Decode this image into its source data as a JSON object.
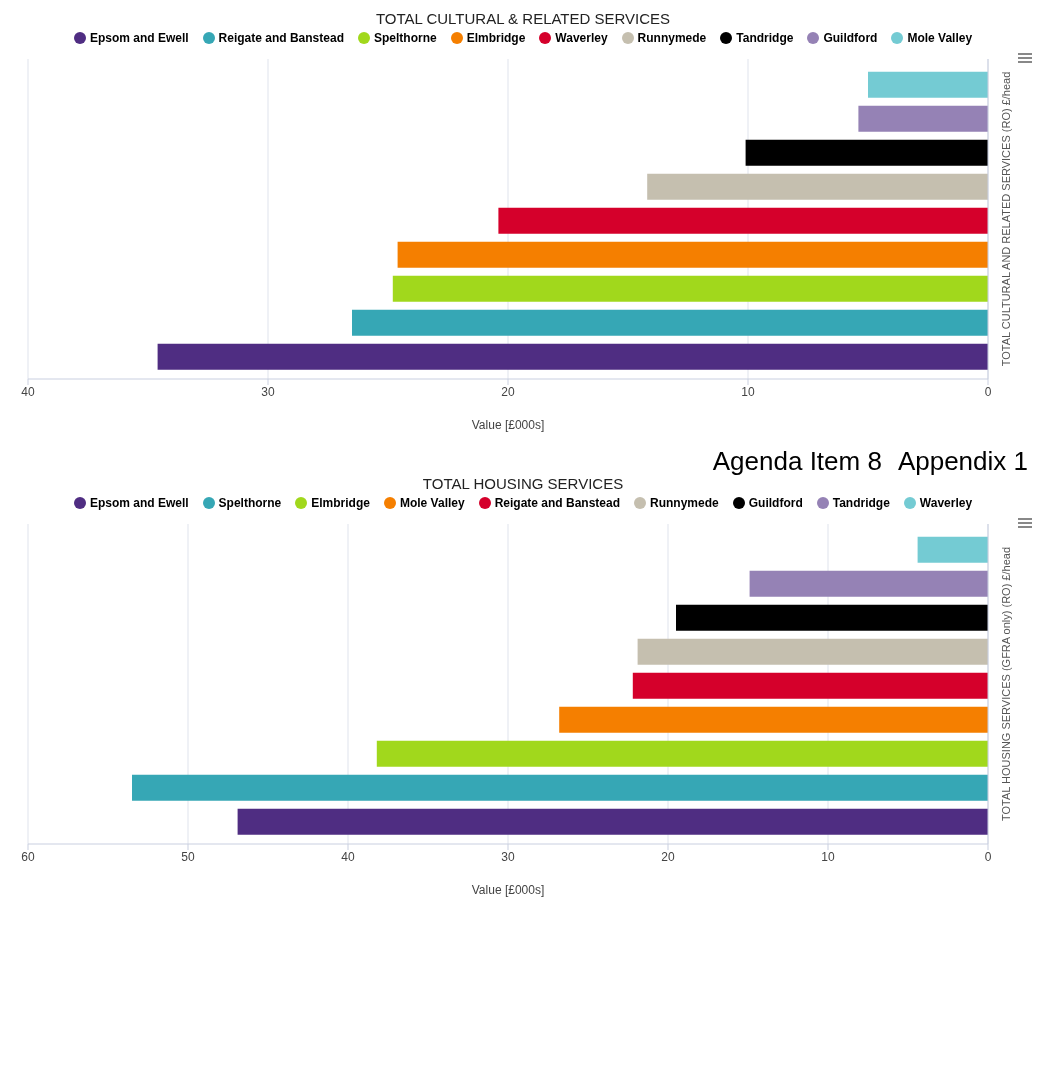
{
  "chart_data": [
    {
      "type": "bar",
      "orientation": "horizontal",
      "title": "TOTAL CULTURAL & RELATED SERVICES",
      "xlabel": "Value [£000s]",
      "categories": [
        "TOTAL CULTURAL AND RELATED SERVICES (RO) £/head"
      ],
      "xlim": [
        40,
        0
      ],
      "xticks": [
        0,
        10,
        20,
        30,
        40
      ],
      "grid": "x",
      "legend": "top",
      "series": [
        {
          "name": "Epsom and Ewell",
          "color": "#4f2d82",
          "values": [
            34.6
          ]
        },
        {
          "name": "Reigate and Banstead",
          "color": "#36a7b5",
          "values": [
            26.5
          ]
        },
        {
          "name": "Spelthorne",
          "color": "#a1d81c",
          "values": [
            24.8
          ]
        },
        {
          "name": "Elmbridge",
          "color": "#f57f00",
          "values": [
            24.6
          ]
        },
        {
          "name": "Waverley",
          "color": "#d5002b",
          "values": [
            20.4
          ]
        },
        {
          "name": "Runnymede",
          "color": "#c5bfaf",
          "values": [
            14.2
          ]
        },
        {
          "name": "Tandridge",
          "color": "#000000",
          "values": [
            10.1
          ]
        },
        {
          "name": "Guildford",
          "color": "#9582b5",
          "values": [
            5.4
          ]
        },
        {
          "name": "Mole Valley",
          "color": "#74cbd3",
          "values": [
            5.0
          ]
        }
      ]
    },
    {
      "type": "bar",
      "orientation": "horizontal",
      "title": "TOTAL HOUSING SERVICES",
      "xlabel": "Value [£000s]",
      "categories": [
        "TOTAL HOUSING SERVICES (GFRA only) (RO) £/head"
      ],
      "xlim": [
        60,
        0
      ],
      "xticks": [
        0,
        10,
        20,
        30,
        40,
        50,
        60
      ],
      "grid": "x",
      "legend": "top",
      "annotations": [
        "Agenda Item 8",
        "Appendix 1"
      ],
      "series": [
        {
          "name": "Epsom and Ewell",
          "color": "#4f2d82",
          "values": [
            46.9
          ]
        },
        {
          "name": "Spelthorne",
          "color": "#36a7b5",
          "values": [
            53.5
          ]
        },
        {
          "name": "Elmbridge",
          "color": "#a1d81c",
          "values": [
            38.2
          ]
        },
        {
          "name": "Mole Valley",
          "color": "#f57f00",
          "values": [
            26.8
          ]
        },
        {
          "name": "Reigate and Banstead",
          "color": "#d5002b",
          "values": [
            22.2
          ]
        },
        {
          "name": "Runnymede",
          "color": "#c5bfaf",
          "values": [
            21.9
          ]
        },
        {
          "name": "Guildford",
          "color": "#000000",
          "values": [
            19.5
          ]
        },
        {
          "name": "Tandridge",
          "color": "#9582b5",
          "values": [
            14.9
          ]
        },
        {
          "name": "Waverley",
          "color": "#74cbd3",
          "values": [
            4.4
          ]
        }
      ]
    }
  ]
}
